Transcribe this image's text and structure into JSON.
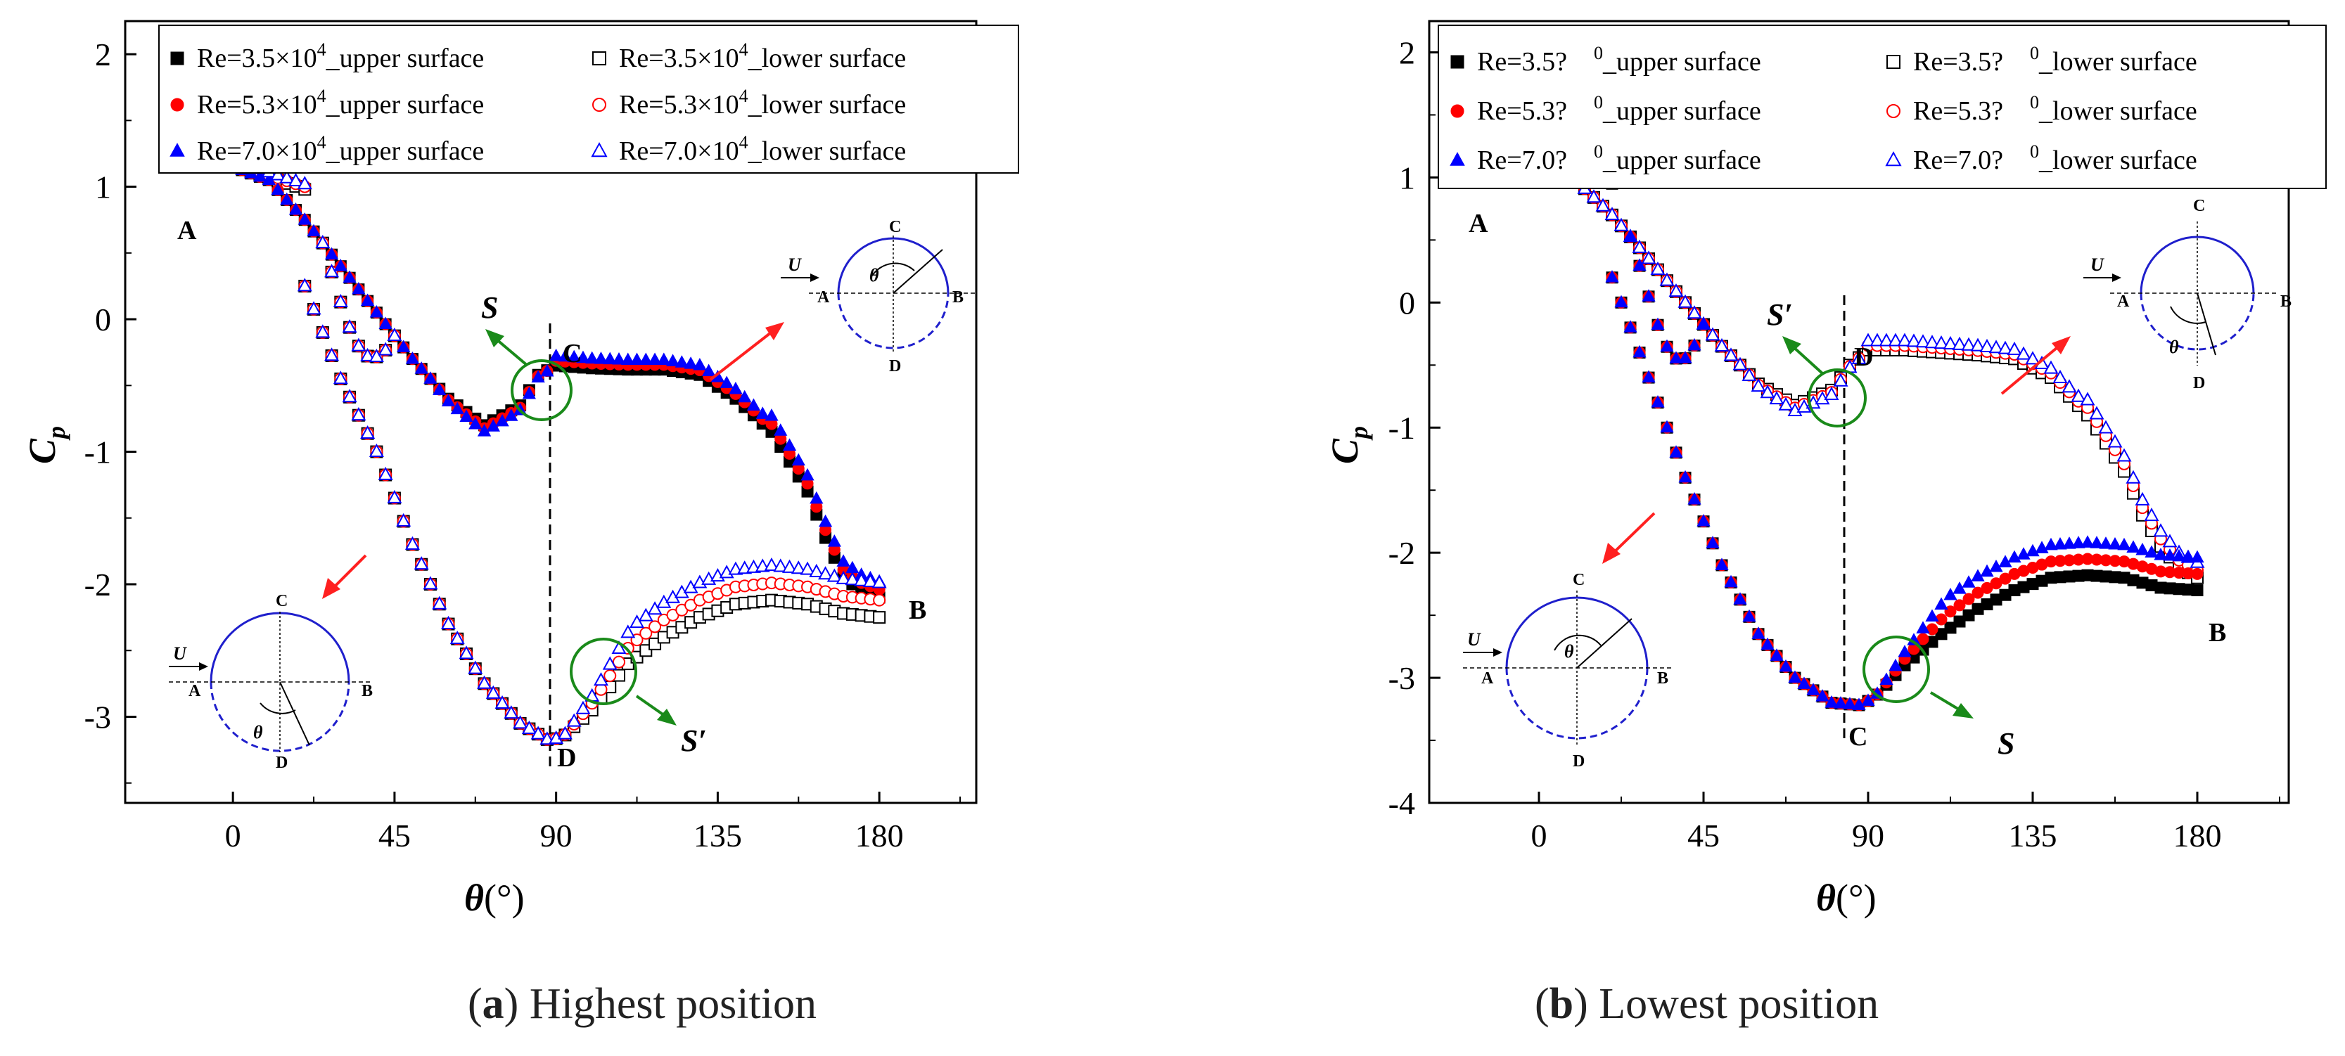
{
  "chart_data": [
    {
      "type": "scatter",
      "caption_letter": "a",
      "caption_text": "Highest position",
      "xlabel_symbol": "θ",
      "xlabel_unit": "(°)",
      "ylabel_main": "C",
      "ylabel_sub": "p",
      "xlim": [
        -30,
        207
      ],
      "ylim": [
        -3.65,
        2.25
      ],
      "x_ticks": [
        "0",
        "45",
        "90",
        "135",
        "180"
      ],
      "y_ticks": [
        "2",
        "1",
        "0",
        "-1",
        "-2",
        "-3"
      ],
      "legend": [
        {
          "prefix": "Re=3.5×10",
          "exp": "4",
          "suffix": "_upper surface",
          "color": "#000000",
          "marker": "square",
          "filled": true
        },
        {
          "prefix": "Re=3.5×10",
          "exp": "4",
          "suffix": "_lower surface",
          "color": "#000000",
          "marker": "square",
          "filled": false
        },
        {
          "prefix": "Re=5.3×10",
          "exp": "4",
          "suffix": "_upper surface",
          "color": "#ff0000",
          "marker": "circle",
          "filled": true
        },
        {
          "prefix": "Re=5.3×10",
          "exp": "4",
          "suffix": "_lower surface",
          "color": "#ff0000",
          "marker": "circle",
          "filled": false
        },
        {
          "prefix": "Re=7.0×10",
          "exp": "4",
          "suffix": "_upper surface",
          "color": "#0000ff",
          "marker": "triangle",
          "filled": true
        },
        {
          "prefix": "Re=7.0×10",
          "exp": "4",
          "suffix": "_lower surface",
          "color": "#0000ff",
          "marker": "triangle",
          "filled": false
        }
      ],
      "curves": {
        "upper": {
          "x": [
            0,
            10,
            20,
            30,
            40,
            50,
            60,
            70,
            80,
            85,
            90,
            100,
            110,
            120,
            130,
            140,
            150,
            160,
            165,
            170,
            175,
            180
          ],
          "y": [
            1.15,
            1.05,
            0.75,
            0.4,
            0.05,
            -0.3,
            -0.6,
            -0.8,
            -0.65,
            -0.42,
            -0.35,
            -0.37,
            -0.38,
            -0.38,
            -0.42,
            -0.6,
            -0.85,
            -1.3,
            -1.65,
            -1.95,
            -2.05,
            -2.1
          ],
          "reynolds_offsets": [
            0,
            0.06,
            0.12
          ],
          "dip_scale": [
            1.0,
            1.12,
            1.25
          ]
        },
        "lower": {
          "x": [
            20,
            30,
            40,
            50,
            60,
            70,
            80,
            88,
            92,
            100,
            110,
            120,
            130,
            140,
            150,
            160,
            170,
            180
          ],
          "y": [
            0.25,
            -0.45,
            -1.0,
            -1.7,
            -2.3,
            -2.75,
            -3.05,
            -3.18,
            -3.15,
            -2.95,
            -2.6,
            -2.4,
            -2.25,
            -2.15,
            -2.12,
            -2.15,
            -2.22,
            -2.25
          ],
          "reynolds_offsets": [
            0,
            0.13,
            0.26
          ]
        },
        "left_lobe": {
          "x": [
            0,
            20
          ],
          "y": [
            1.16,
            0.98
          ]
        },
        "loop_x": [
          25,
          45
        ]
      },
      "points": {
        "A": "A",
        "B": "B",
        "C": "C",
        "D": "D"
      },
      "separation_labels": {
        "upper": "S",
        "lower": "S′"
      },
      "inset_labels": {
        "flow": "U",
        "angle": "θ"
      }
    },
    {
      "type": "scatter",
      "caption_letter": "b",
      "caption_text": "Lowest position",
      "xlabel_symbol": "θ",
      "xlabel_unit": "(°)",
      "ylabel_main": "C",
      "ylabel_sub": "p",
      "xlim": [
        -30,
        205
      ],
      "ylim": [
        -4.0,
        2.25
      ],
      "x_ticks": [
        "0",
        "45",
        "90",
        "135",
        "180"
      ],
      "y_ticks": [
        "2",
        "1",
        "0",
        "-1",
        "-2",
        "-3",
        "-4"
      ],
      "legend": [
        {
          "prefix": "Re=3.5?",
          "exp": "0",
          "gap": "    ",
          "suffix": "_upper surface",
          "color": "#000000",
          "marker": "square",
          "filled": true
        },
        {
          "prefix": "Re=3.5?",
          "exp": "0",
          "gap": "    ",
          "suffix": "_lower surface",
          "color": "#000000",
          "marker": "square",
          "filled": false
        },
        {
          "prefix": "Re=5.3?",
          "exp": "0",
          "gap": "    ",
          "suffix": "_upper surface",
          "color": "#ff0000",
          "marker": "circle",
          "filled": true
        },
        {
          "prefix": "Re=5.3?",
          "exp": "0",
          "gap": "    ",
          "suffix": "_lower surface",
          "color": "#ff0000",
          "marker": "circle",
          "filled": false
        },
        {
          "prefix": "Re=7.0?",
          "exp": "0",
          "gap": "    ",
          "suffix": "_upper surface",
          "color": "#0000ff",
          "marker": "triangle",
          "filled": true
        },
        {
          "prefix": "Re=7.0?",
          "exp": "0",
          "gap": "    ",
          "suffix": "_lower surface",
          "color": "#0000ff",
          "marker": "triangle",
          "filled": false
        }
      ],
      "curves": {
        "upper": {
          "x": [
            20,
            30,
            40,
            50,
            60,
            70,
            80,
            88,
            92,
            100,
            110,
            120,
            130,
            140,
            150,
            160,
            170,
            180
          ],
          "y": [
            0.2,
            -0.6,
            -1.4,
            -2.1,
            -2.65,
            -3.0,
            -3.2,
            -3.22,
            -3.15,
            -2.9,
            -2.65,
            -2.45,
            -2.3,
            -2.2,
            -2.18,
            -2.2,
            -2.28,
            -2.3
          ],
          "reynolds_offsets": [
            0,
            0.13,
            0.26
          ]
        },
        "lower": {
          "x": [
            0,
            10,
            20,
            30,
            40,
            50,
            60,
            70,
            80,
            85,
            90,
            100,
            110,
            120,
            130,
            140,
            150,
            160,
            165,
            170,
            175,
            180
          ],
          "y": [
            1.1,
            0.98,
            0.7,
            0.35,
            0.0,
            -0.35,
            -0.65,
            -0.82,
            -0.7,
            -0.5,
            -0.38,
            -0.38,
            -0.4,
            -0.42,
            -0.45,
            -0.6,
            -0.9,
            -1.35,
            -1.7,
            -1.95,
            -2.12,
            -2.2
          ],
          "reynolds_offsets": [
            0,
            0.06,
            0.12
          ],
          "dip_scale": [
            1.0,
            1.12,
            1.25
          ]
        },
        "left_lobe": {
          "x": [
            0,
            20
          ],
          "y": [
            1.1,
            0.95
          ]
        },
        "loop_x": [
          25,
          45
        ]
      },
      "points": {
        "A": "A",
        "B": "B",
        "C": "C",
        "D": "D"
      },
      "separation_labels": {
        "upper": "S′",
        "lower": "S"
      },
      "inset_labels": {
        "flow": "U",
        "angle": "θ"
      }
    }
  ]
}
